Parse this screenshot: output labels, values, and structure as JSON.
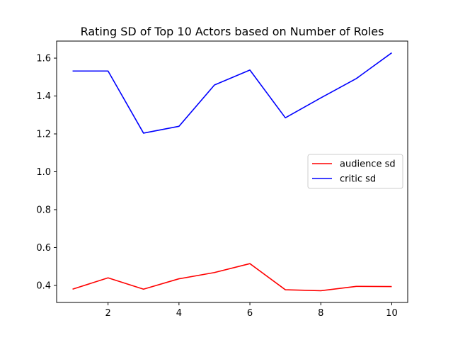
{
  "chart_data": {
    "type": "line",
    "title": "Rating SD of Top 10 Actors based on Number of Roles",
    "xlabel": "",
    "ylabel": "",
    "x": [
      1,
      2,
      3,
      4,
      5,
      6,
      7,
      8,
      9,
      10
    ],
    "xlim": [
      0.55,
      10.45
    ],
    "ylim": [
      0.31,
      1.69
    ],
    "xticks": [
      2,
      4,
      6,
      8,
      10
    ],
    "yticks": [
      0.4,
      0.6,
      0.8,
      1.0,
      1.2,
      1.4,
      1.6
    ],
    "ytick_labels": [
      "0.4",
      "0.6",
      "0.8",
      "1.0",
      "1.2",
      "1.4",
      "1.6"
    ],
    "grid": false,
    "legend_position": "center-right",
    "series": [
      {
        "name": "audience sd",
        "color": "#ff0000",
        "values": [
          0.38,
          0.44,
          0.38,
          0.435,
          0.468,
          0.515,
          0.377,
          0.372,
          0.395,
          0.394
        ]
      },
      {
        "name": "critic sd",
        "color": "#0000ff",
        "values": [
          1.532,
          1.532,
          1.204,
          1.24,
          1.458,
          1.537,
          1.285,
          1.39,
          1.492,
          1.628
        ]
      }
    ]
  }
}
